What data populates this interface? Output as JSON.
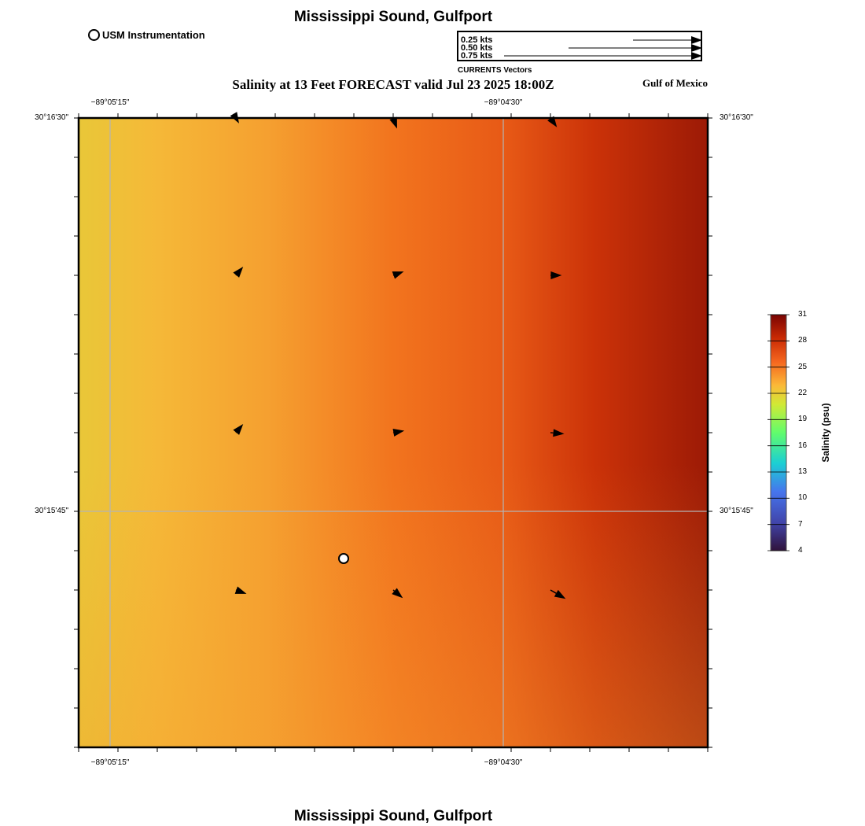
{
  "header": {
    "title": "Mississippi Sound, Gulfport",
    "subtitle": "Salinity at 13 Feet FORECAST valid Jul 23 2025 18:00Z",
    "region_label": "Gulf of Mexico",
    "station_legend": "USM Instrumentation",
    "bottom_title": "Mississippi Sound, Gulfport"
  },
  "vector_legend": {
    "caption": "CURRENTS Vectors",
    "rows": [
      {
        "label": "0.25 kts",
        "speed_kts": 0.25
      },
      {
        "label": "0.50 kts",
        "speed_kts": 0.5
      },
      {
        "label": "0.75 kts",
        "speed_kts": 0.75
      }
    ]
  },
  "axes": {
    "lon_ticks": [
      "−89°05'15\"",
      "−89°04'30\""
    ],
    "lat_ticks": [
      "30°16'30\"",
      "30°15'45\""
    ]
  },
  "colorbar": {
    "title": "Salinity (psu)",
    "ticks": [
      "31",
      "28",
      "25",
      "22",
      "19",
      "16",
      "13",
      "10",
      "7",
      "4"
    ]
  },
  "current_vectors": [
    {
      "row": 0,
      "col": 0,
      "dir_deg": 150,
      "speed_kts": 0.05
    },
    {
      "row": 0,
      "col": 1,
      "dir_deg": 160,
      "speed_kts": 0.09
    },
    {
      "row": 0,
      "col": 2,
      "dir_deg": 145,
      "speed_kts": 0.09
    },
    {
      "row": 1,
      "col": 0,
      "dir_deg": 40,
      "speed_kts": 0.09
    },
    {
      "row": 1,
      "col": 1,
      "dir_deg": 70,
      "speed_kts": 0.09
    },
    {
      "row": 1,
      "col": 2,
      "dir_deg": 90,
      "speed_kts": 0.09
    },
    {
      "row": 2,
      "col": 0,
      "dir_deg": 40,
      "speed_kts": 0.09
    },
    {
      "row": 2,
      "col": 1,
      "dir_deg": 80,
      "speed_kts": 0.09
    },
    {
      "row": 2,
      "col": 2,
      "dir_deg": 95,
      "speed_kts": 0.11
    },
    {
      "row": 3,
      "col": 0,
      "dir_deg": 110,
      "speed_kts": 0.09
    },
    {
      "row": 3,
      "col": 1,
      "dir_deg": 130,
      "speed_kts": 0.1
    },
    {
      "row": 3,
      "col": 2,
      "dir_deg": 120,
      "speed_kts": 0.14
    }
  ],
  "colors": {
    "low_salinity": "#e9c738",
    "mid_salinity": "#f2741e",
    "high_salinity": "#9c1a06",
    "grid": "#b4b4b4"
  }
}
